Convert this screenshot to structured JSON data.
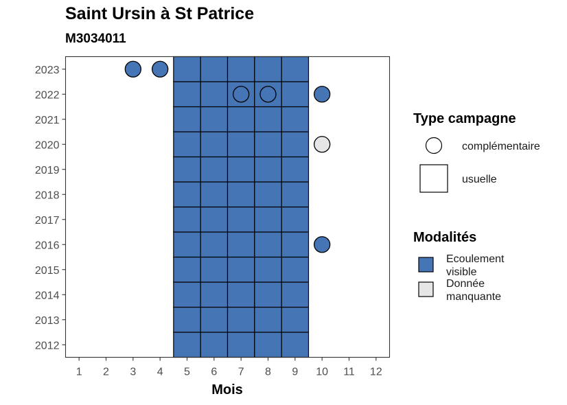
{
  "chart_data": {
    "type": "heatmap",
    "title": "Saint Ursin à St Patrice",
    "subtitle": "M3034011",
    "xlabel": "Mois",
    "ylabel": "",
    "x_ticks": [
      "1",
      "2",
      "3",
      "4",
      "5",
      "6",
      "7",
      "8",
      "9",
      "10",
      "11",
      "12"
    ],
    "y_ticks": [
      "2012",
      "2013",
      "2014",
      "2015",
      "2016",
      "2017",
      "2018",
      "2019",
      "2020",
      "2021",
      "2022",
      "2023"
    ],
    "xlim": [
      0.5,
      12.5
    ],
    "ylim": [
      2011.5,
      2023.5
    ],
    "grid": false,
    "legend_position": "right",
    "colors": {
      "Ecoulement visible": "#4575b4",
      "Donnée manquante": "#e6e6e6"
    },
    "usuelle_campaigns": {
      "months": [
        5,
        6,
        7,
        8,
        9
      ],
      "years": [
        2012,
        2023
      ],
      "modalite": "Ecoulement visible"
    },
    "complementaire_points": [
      {
        "month": 3,
        "year": 2023,
        "modalite": "Ecoulement visible"
      },
      {
        "month": 4,
        "year": 2023,
        "modalite": "Ecoulement visible"
      },
      {
        "month": 7,
        "year": 2022,
        "modalite": "Ecoulement visible"
      },
      {
        "month": 8,
        "year": 2022,
        "modalite": "Ecoulement visible"
      },
      {
        "month": 10,
        "year": 2022,
        "modalite": "Ecoulement visible"
      },
      {
        "month": 10,
        "year": 2020,
        "modalite": "Donnée manquante"
      },
      {
        "month": 10,
        "year": 2016,
        "modalite": "Ecoulement visible"
      }
    ],
    "legend_type": {
      "title": "Type campagne",
      "items": [
        "complémentaire",
        "usuelle"
      ]
    },
    "legend_modalites": {
      "title": "Modalités",
      "items": [
        {
          "label_lines": [
            "Ecoulement",
            "visible"
          ],
          "color": "#4575b4"
        },
        {
          "label_lines": [
            "Donnée",
            "manquante"
          ],
          "color": "#e6e6e6"
        }
      ]
    }
  }
}
